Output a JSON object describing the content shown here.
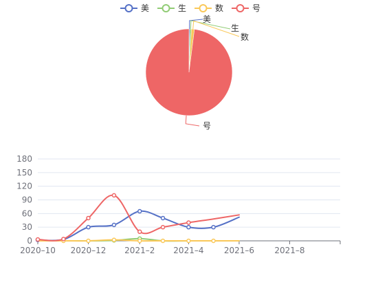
{
  "legend": {
    "items": [
      {
        "label": "美",
        "color": "#5470c6"
      },
      {
        "label": "生",
        "color": "#91cc75"
      },
      {
        "label": "数",
        "color": "#fac858"
      },
      {
        "label": "号",
        "color": "#ee6666"
      }
    ]
  },
  "chart_data": [
    {
      "type": "pie",
      "title": "",
      "slices": [
        {
          "name": "美",
          "value": 0.3,
          "color": "#5470c6"
        },
        {
          "name": "生",
          "value": 0.5,
          "color": "#91cc75"
        },
        {
          "name": "数",
          "value": 1.0,
          "color": "#fac858"
        },
        {
          "name": "号",
          "value": 88,
          "color": "#ee6666"
        }
      ]
    },
    {
      "type": "line",
      "title": "",
      "xlabel": "",
      "ylabel": "",
      "x_axis_type": "date",
      "xlim": [
        "2020-10-01",
        "2021-10-01"
      ],
      "ylim": [
        0,
        180
      ],
      "yticks": [
        0,
        30,
        60,
        90,
        120,
        150,
        180
      ],
      "xticks": [
        {
          "date": "2020-10-01",
          "label": "2020–10"
        },
        {
          "date": "2020-12-01",
          "label": "2020–12"
        },
        {
          "date": "2021-02-01",
          "label": "2021–2"
        },
        {
          "date": "2021-04-01",
          "label": "2021–4"
        },
        {
          "date": "2021-06-01",
          "label": "2021–6"
        },
        {
          "date": "2021-08-01",
          "label": "2021–8"
        }
      ],
      "grid": "horizontal",
      "series": [
        {
          "name": "美",
          "color": "#5470c6",
          "smooth": true,
          "points": [
            [
              "2020-10-01",
              2
            ],
            [
              "2020-11-01",
              3
            ],
            [
              "2020-12-01",
              30
            ],
            [
              "2021-01-01",
              35
            ],
            [
              "2021-02-01",
              65
            ],
            [
              "2021-03-01",
              50
            ],
            [
              "2021-04-01",
              30
            ],
            [
              "2021-05-01",
              30
            ],
            [
              "2021-06-01",
              52
            ]
          ],
          "markers": [
            "2020-10-01",
            "2020-11-01",
            "2020-12-01",
            "2021-01-01",
            "2021-02-01",
            "2021-03-01",
            "2021-04-01",
            "2021-05-01"
          ]
        },
        {
          "name": "生",
          "color": "#91cc75",
          "smooth": true,
          "points": [
            [
              "2020-10-01",
              0
            ],
            [
              "2020-11-01",
              0
            ],
            [
              "2020-12-01",
              0
            ],
            [
              "2021-01-01",
              1
            ],
            [
              "2021-02-01",
              5
            ],
            [
              "2021-03-01",
              0
            ],
            [
              "2021-04-01",
              0
            ],
            [
              "2021-05-01",
              0
            ],
            [
              "2021-06-01",
              0
            ]
          ],
          "markers": [
            "2021-01-01",
            "2021-02-01"
          ]
        },
        {
          "name": "数",
          "color": "#fac858",
          "smooth": true,
          "points": [
            [
              "2020-10-01",
              0
            ],
            [
              "2020-11-01",
              0
            ],
            [
              "2020-12-01",
              0
            ],
            [
              "2021-01-01",
              2
            ],
            [
              "2021-02-01",
              0
            ],
            [
              "2021-03-01",
              0
            ],
            [
              "2021-04-01",
              0
            ],
            [
              "2021-05-01",
              0
            ],
            [
              "2021-06-01",
              0
            ]
          ],
          "markers": [
            "2020-11-01",
            "2020-12-01",
            "2021-01-01",
            "2021-02-01",
            "2021-03-01",
            "2021-04-01",
            "2021-05-01"
          ]
        },
        {
          "name": "号",
          "color": "#ee6666",
          "smooth": true,
          "points": [
            [
              "2020-10-01",
              3
            ],
            [
              "2020-11-01",
              4
            ],
            [
              "2020-12-01",
              50
            ],
            [
              "2021-01-01",
              100
            ],
            [
              "2021-02-01",
              20
            ],
            [
              "2021-03-01",
              30
            ],
            [
              "2021-04-01",
              40
            ],
            [
              "2021-05-01",
              48
            ],
            [
              "2021-06-01",
              57
            ]
          ],
          "markers": [
            "2020-10-01",
            "2020-11-01",
            "2020-12-01",
            "2021-01-01",
            "2021-02-01",
            "2021-03-01",
            "2021-04-01"
          ]
        }
      ]
    }
  ]
}
